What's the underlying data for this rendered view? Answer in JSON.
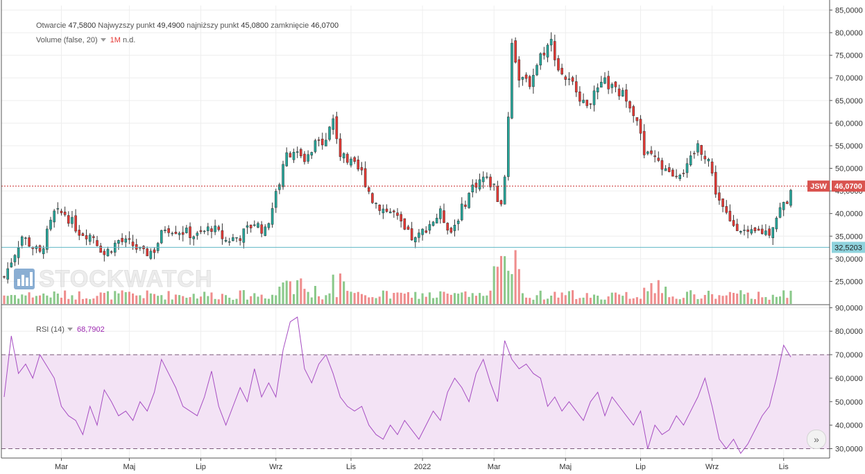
{
  "legend": {
    "ohlc_labels": [
      "Otwarcie",
      "Najwyzszy punkt",
      "najniższy punkt",
      "zamknięcie"
    ],
    "ohlc_values": [
      "47,5800",
      "49,4900",
      "45,0800",
      "46,0700"
    ],
    "volume_label": "Volume (false, 20)",
    "volume_value_1": "1M",
    "volume_value_2": "n.d.",
    "rsi_label": "RSI (14)",
    "rsi_value": "68,7902"
  },
  "watermark": "STOCKWATCH",
  "price_tag": {
    "symbol": "JSW",
    "value": "46,0700",
    "level_value": "32,5203"
  },
  "colors": {
    "up": "#26a69a",
    "down": "#e53935",
    "up_bar": "#8bc98b",
    "down_bar": "#ef8d8d",
    "rsi": "#a64dc2",
    "band": "#f3e3f5"
  },
  "chart_data": [
    {
      "type": "candlestick",
      "x_ticks": [
        "Mar",
        "Maj",
        "Lip",
        "Wrz",
        "Lis",
        "2022",
        "Mar",
        "Maj",
        "Lip",
        "Wrz",
        "Lis"
      ],
      "y_ticks": [
        "25,0000",
        "30,0000",
        "35,0000",
        "40,0000",
        "45,0000",
        "50,0000",
        "55,0000",
        "60,0000",
        "65,0000",
        "70,0000",
        "75,0000",
        "80,0000",
        "85,0000"
      ],
      "ylim": [
        20,
        86
      ],
      "last_close": 46.07,
      "horizontal_level": 32.5203,
      "close_path": [
        [
          0,
          26
        ],
        [
          5,
          35
        ],
        [
          10,
          31
        ],
        [
          14,
          40
        ],
        [
          17,
          40
        ],
        [
          21,
          36
        ],
        [
          25,
          35
        ],
        [
          28,
          31
        ],
        [
          32,
          34
        ],
        [
          36,
          33
        ],
        [
          39,
          31
        ],
        [
          42,
          32
        ],
        [
          45,
          37
        ],
        [
          50,
          36
        ],
        [
          54,
          35
        ],
        [
          58,
          37
        ],
        [
          62,
          34
        ],
        [
          66,
          35
        ],
        [
          70,
          38
        ],
        [
          73,
          36
        ],
        [
          76,
          44
        ],
        [
          79,
          53
        ],
        [
          81,
          54
        ],
        [
          84,
          51
        ],
        [
          87,
          55
        ],
        [
          90,
          57
        ],
        [
          92,
          61
        ],
        [
          94,
          53
        ],
        [
          97,
          51
        ],
        [
          100,
          49
        ],
        [
          103,
          43
        ],
        [
          106,
          41
        ],
        [
          109,
          40
        ],
        [
          112,
          36
        ],
        [
          115,
          34
        ],
        [
          118,
          37
        ],
        [
          122,
          40
        ],
        [
          125,
          36
        ],
        [
          128,
          41
        ],
        [
          131,
          46
        ],
        [
          134,
          48
        ],
        [
          137,
          46
        ],
        [
          139,
          41
        ],
        [
          140,
          48
        ],
        [
          141,
          62
        ],
        [
          142,
          78
        ],
        [
          144,
          70
        ],
        [
          147,
          69
        ],
        [
          150,
          75
        ],
        [
          153,
          78
        ],
        [
          155,
          72
        ],
        [
          158,
          69
        ],
        [
          160,
          68
        ],
        [
          162,
          64
        ],
        [
          165,
          66
        ],
        [
          168,
          69
        ],
        [
          171,
          67
        ],
        [
          174,
          66
        ],
        [
          177,
          61
        ],
        [
          179,
          53
        ],
        [
          182,
          52
        ],
        [
          185,
          49
        ],
        [
          188,
          49
        ],
        [
          191,
          50
        ],
        [
          194,
          55
        ],
        [
          197,
          52
        ],
        [
          199,
          45
        ],
        [
          201,
          41
        ],
        [
          203,
          38
        ],
        [
          206,
          37
        ],
        [
          208,
          35
        ],
        [
          211,
          36
        ],
        [
          214,
          36
        ],
        [
          217,
          41
        ],
        [
          219,
          43
        ],
        [
          220,
          46
        ]
      ],
      "n_candles": 221
    },
    {
      "type": "bar",
      "title": "Volume (false, 20)"
    },
    {
      "type": "line",
      "title": "RSI (14)",
      "y_ticks": [
        "30,0000",
        "40,0000",
        "50,0000",
        "60,0000",
        "70,0000",
        "80,0000",
        "90,0000"
      ],
      "ylim": [
        26,
        91
      ],
      "band": [
        30,
        70
      ],
      "last_value": 68.7902,
      "path": [
        [
          0,
          52
        ],
        [
          2,
          78
        ],
        [
          4,
          62
        ],
        [
          6,
          66
        ],
        [
          8,
          60
        ],
        [
          10,
          70
        ],
        [
          12,
          65
        ],
        [
          14,
          60
        ],
        [
          16,
          48
        ],
        [
          18,
          44
        ],
        [
          20,
          42
        ],
        [
          22,
          36
        ],
        [
          24,
          48
        ],
        [
          26,
          40
        ],
        [
          28,
          55
        ],
        [
          30,
          50
        ],
        [
          32,
          44
        ],
        [
          34,
          46
        ],
        [
          36,
          42
        ],
        [
          38,
          50
        ],
        [
          40,
          46
        ],
        [
          42,
          54
        ],
        [
          44,
          68
        ],
        [
          46,
          62
        ],
        [
          48,
          56
        ],
        [
          50,
          48
        ],
        [
          52,
          46
        ],
        [
          54,
          44
        ],
        [
          56,
          52
        ],
        [
          58,
          63
        ],
        [
          60,
          48
        ],
        [
          62,
          40
        ],
        [
          64,
          48
        ],
        [
          66,
          56
        ],
        [
          68,
          50
        ],
        [
          70,
          64
        ],
        [
          72,
          52
        ],
        [
          74,
          58
        ],
        [
          76,
          52
        ],
        [
          78,
          72
        ],
        [
          80,
          84
        ],
        [
          82,
          86
        ],
        [
          84,
          64
        ],
        [
          86,
          58
        ],
        [
          88,
          66
        ],
        [
          90,
          70
        ],
        [
          92,
          62
        ],
        [
          94,
          52
        ],
        [
          96,
          48
        ],
        [
          98,
          46
        ],
        [
          100,
          48
        ],
        [
          102,
          40
        ],
        [
          104,
          36
        ],
        [
          106,
          34
        ],
        [
          108,
          40
        ],
        [
          110,
          36
        ],
        [
          112,
          42
        ],
        [
          114,
          38
        ],
        [
          116,
          34
        ],
        [
          118,
          40
        ],
        [
          120,
          46
        ],
        [
          122,
          42
        ],
        [
          124,
          54
        ],
        [
          126,
          60
        ],
        [
          128,
          56
        ],
        [
          130,
          50
        ],
        [
          132,
          62
        ],
        [
          134,
          68
        ],
        [
          136,
          58
        ],
        [
          138,
          50
        ],
        [
          140,
          76
        ],
        [
          142,
          68
        ],
        [
          144,
          64
        ],
        [
          146,
          66
        ],
        [
          148,
          62
        ],
        [
          150,
          60
        ],
        [
          152,
          48
        ],
        [
          154,
          52
        ],
        [
          156,
          46
        ],
        [
          158,
          50
        ],
        [
          160,
          46
        ],
        [
          162,
          42
        ],
        [
          164,
          50
        ],
        [
          166,
          54
        ],
        [
          168,
          44
        ],
        [
          170,
          52
        ],
        [
          172,
          48
        ],
        [
          174,
          44
        ],
        [
          176,
          40
        ],
        [
          178,
          46
        ],
        [
          180,
          30
        ],
        [
          182,
          40
        ],
        [
          184,
          36
        ],
        [
          186,
          38
        ],
        [
          188,
          44
        ],
        [
          190,
          40
        ],
        [
          192,
          46
        ],
        [
          194,
          52
        ],
        [
          196,
          60
        ],
        [
          198,
          48
        ],
        [
          200,
          34
        ],
        [
          202,
          30
        ],
        [
          204,
          34
        ],
        [
          206,
          28
        ],
        [
          208,
          32
        ],
        [
          210,
          38
        ],
        [
          212,
          44
        ],
        [
          214,
          48
        ],
        [
          216,
          60
        ],
        [
          218,
          74
        ],
        [
          220,
          69
        ]
      ]
    }
  ]
}
